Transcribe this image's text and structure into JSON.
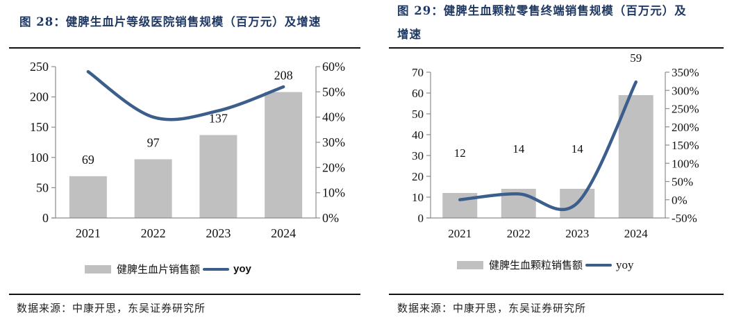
{
  "figures": [
    {
      "title": "图 28：健脾生血片等级医院销售规模（百万元）及增速",
      "legend": {
        "bar_label": "健脾生血片销售额",
        "line_label": "yoy"
      },
      "source": "数据来源：中康开思，东吴证券研究所"
    },
    {
      "title_line1": "图 29：健脾生血颗粒零售终端销售规模（百万元）及",
      "title_line2": "增速",
      "legend": {
        "bar_label": "健脾生血颗粒销售额",
        "line_label": "yoy"
      },
      "source": "数据来源：中康开思，东吴证券研究所"
    }
  ],
  "colors": {
    "bar": "#c0c0c0",
    "line": "#3b5e8c",
    "title": "#1f3864"
  },
  "chart_data": [
    {
      "type": "bar",
      "title": "健脾生血片等级医院销售规模（百万元）及增速",
      "categories": [
        "2021",
        "2022",
        "2023",
        "2024"
      ],
      "series": [
        {
          "name": "健脾生血片销售额",
          "type": "bar",
          "axis": "left",
          "values": [
            69,
            97,
            137,
            208
          ],
          "labels": [
            "69",
            "97",
            "137",
            "208"
          ]
        },
        {
          "name": "yoy",
          "type": "line",
          "axis": "right",
          "values": [
            58,
            40,
            42.5,
            52
          ]
        }
      ],
      "ylim": [
        0,
        250
      ],
      "yticks": [
        "0",
        "50",
        "100",
        "150",
        "200",
        "250"
      ],
      "y2lim": [
        0,
        60
      ],
      "y2ticks": [
        "0%",
        "10%",
        "20%",
        "30%",
        "40%",
        "50%",
        "60%"
      ],
      "legend_position": "bottom"
    },
    {
      "type": "bar",
      "title": "健脾生血颗粒零售终端销售规模（百万元）及增速",
      "categories": [
        "2021",
        "2022",
        "2023",
        "2024"
      ],
      "series": [
        {
          "name": "健脾生血颗粒销售额",
          "type": "bar",
          "axis": "left",
          "values": [
            12,
            14,
            14,
            59
          ],
          "labels": [
            "12",
            "14",
            "14",
            "59"
          ]
        },
        {
          "name": "yoy",
          "type": "line",
          "axis": "right",
          "values": [
            0,
            16,
            -9,
            323
          ]
        }
      ],
      "ylim": [
        0,
        70
      ],
      "yticks": [
        "0",
        "10",
        "20",
        "30",
        "40",
        "50",
        "60",
        "70"
      ],
      "y2lim": [
        -50,
        350
      ],
      "y2ticks": [
        "-50%",
        "0%",
        "50%",
        "100%",
        "150%",
        "200%",
        "250%",
        "300%",
        "350%"
      ],
      "legend_position": "bottom"
    }
  ]
}
